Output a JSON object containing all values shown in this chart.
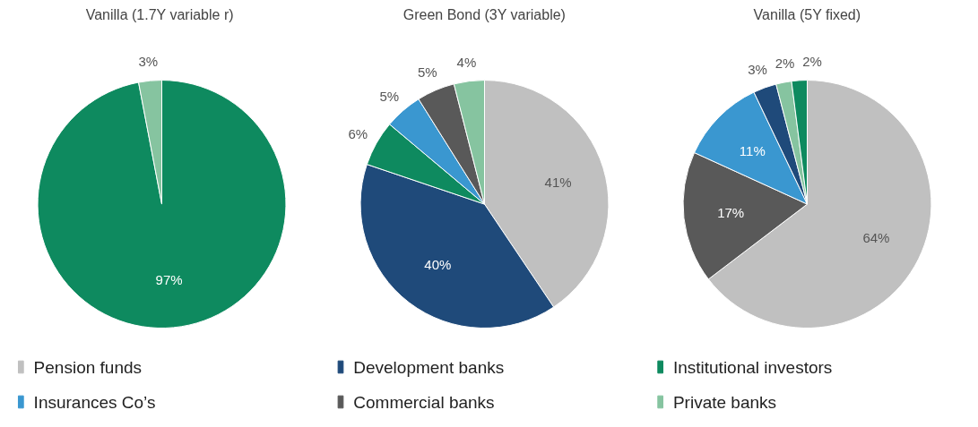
{
  "chart_data": [
    {
      "type": "pie",
      "title": "Vanilla (1.7Y  variable r)",
      "categories": [
        null,
        null
      ],
      "values": [
        97,
        3
      ],
      "colors": [
        "#0e8a5f",
        "#86c4a0"
      ],
      "value_labels": [
        "97%",
        "3%"
      ]
    },
    {
      "type": "pie",
      "title": "Green Bond (3Y variable)",
      "categories": [
        "Pension funds",
        "Development banks",
        "Institutional investors",
        "Insurances Co’s",
        "Commercial banks",
        "Private banks"
      ],
      "values": [
        41,
        40,
        6,
        5,
        5,
        4
      ],
      "colors": [
        "#c0c0c0",
        "#1f4a7a",
        "#0e8a5f",
        "#3a97d0",
        "#595959",
        "#86c4a0"
      ],
      "value_labels": [
        "41%",
        "40%",
        "6%",
        "5%",
        "5%",
        "4%"
      ],
      "legend": "bottom"
    },
    {
      "type": "pie",
      "title": "Vanilla (5Y fixed)",
      "categories": [
        null,
        null,
        null,
        null,
        null,
        null
      ],
      "values": [
        64,
        17,
        11,
        3,
        2,
        2
      ],
      "colors": [
        "#c0c0c0",
        "#595959",
        "#3a97d0",
        "#1f4a7a",
        "#86c4a0",
        "#0e8a5f"
      ],
      "value_labels": [
        "64%",
        "17%",
        "11%",
        "3%",
        "2%",
        "2%"
      ]
    }
  ]
}
